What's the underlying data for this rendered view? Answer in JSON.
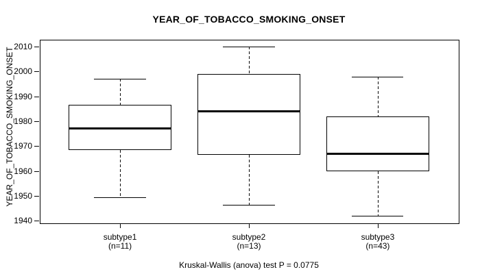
{
  "title": "YEAR_OF_TOBACCO_SMOKING_ONSET",
  "y_axis_title": "YEAR_OF_TOBACCO_SMOKING_ONSET",
  "caption": "Kruskal-Wallis (anova) test P = 0.0775",
  "chart_data": {
    "type": "boxplot",
    "title": "YEAR_OF_TOBACCO_SMOKING_ONSET",
    "xlabel": "",
    "ylabel": "YEAR_OF_TOBACCO_SMOKING_ONSET",
    "footer_annotation": "Kruskal-Wallis (anova) test P = 0.0775",
    "grid": false,
    "legend": "none",
    "ylim": [
      1939.3,
      2012.75
    ],
    "yticks": [
      1940,
      1950,
      1960,
      1970,
      1980,
      1990,
      2000,
      2010
    ],
    "xlim": [
      0.377,
      3.623
    ],
    "box_width_units": 0.8,
    "cap_width_units": 0.4,
    "categories": [
      "subtype1",
      "subtype2",
      "subtype3"
    ],
    "category_sublabels": [
      "(n=11)",
      "(n=13)",
      "(n=43)"
    ],
    "groups": [
      {
        "label": "subtype1",
        "sublabel": "(n=11)",
        "n": 11,
        "x": 1,
        "whisker_low": 1949.5,
        "q1": 1968.5,
        "median": 1977,
        "q3": 1986.5,
        "whisker_high": 1997
      },
      {
        "label": "subtype2",
        "sublabel": "(n=13)",
        "n": 13,
        "x": 2,
        "whisker_low": 1946.5,
        "q1": 1966.5,
        "median": 1984,
        "q3": 1999,
        "whisker_high": 2010
      },
      {
        "label": "subtype3",
        "sublabel": "(n=43)",
        "n": 43,
        "x": 3,
        "whisker_low": 1942,
        "q1": 1960,
        "median": 1967,
        "q3": 1982,
        "whisker_high": 1998
      }
    ],
    "colors": {
      "line": "#000000",
      "box_fill": "#ffffff",
      "background": "#ffffff"
    }
  }
}
